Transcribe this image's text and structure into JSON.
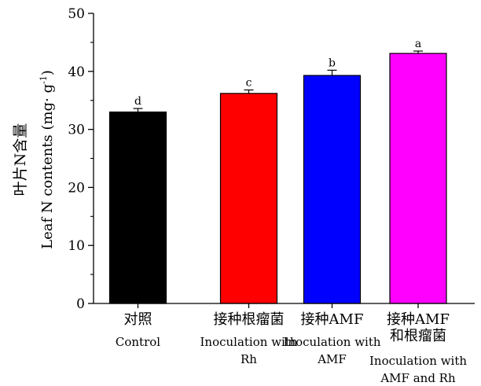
{
  "chart_data": {
    "type": "bar",
    "ylabel_zh": "叶片N含量",
    "ylabel_en_main": "Leaf N contents (mg",
    "ylabel_en_dot": "·",
    "ylabel_en_g": " g",
    "ylabel_en_sup": "-1",
    "ylabel_en_close": ")",
    "ylim": [
      0,
      50
    ],
    "yticks": [
      "0",
      "10",
      "20",
      "30",
      "40",
      "50"
    ],
    "ytick_values": [
      0,
      10,
      20,
      30,
      40,
      50
    ],
    "categories": [
      {
        "zh": [
          "对照"
        ],
        "en": [
          "Control"
        ]
      },
      {
        "zh": [
          "接种根瘤菌"
        ],
        "en": [
          "Inoculation with",
          "Rh"
        ]
      },
      {
        "zh": [
          "接种AMF"
        ],
        "en": [
          "Inoculation with",
          "AMF"
        ]
      },
      {
        "zh": [
          "接种AMF",
          "和根瘤菌"
        ],
        "en": [
          "Inoculation with",
          "AMF and Rh"
        ]
      }
    ],
    "values": [
      33.0,
      36.2,
      39.3,
      43.1
    ],
    "errors": [
      0.6,
      0.6,
      0.9,
      0.4
    ],
    "significance": [
      "d",
      "c",
      "b",
      "a"
    ],
    "colors": [
      "#000000",
      "#ff0000",
      "#0000ff",
      "#ff00ff"
    ],
    "grid": false,
    "legend": "none"
  }
}
